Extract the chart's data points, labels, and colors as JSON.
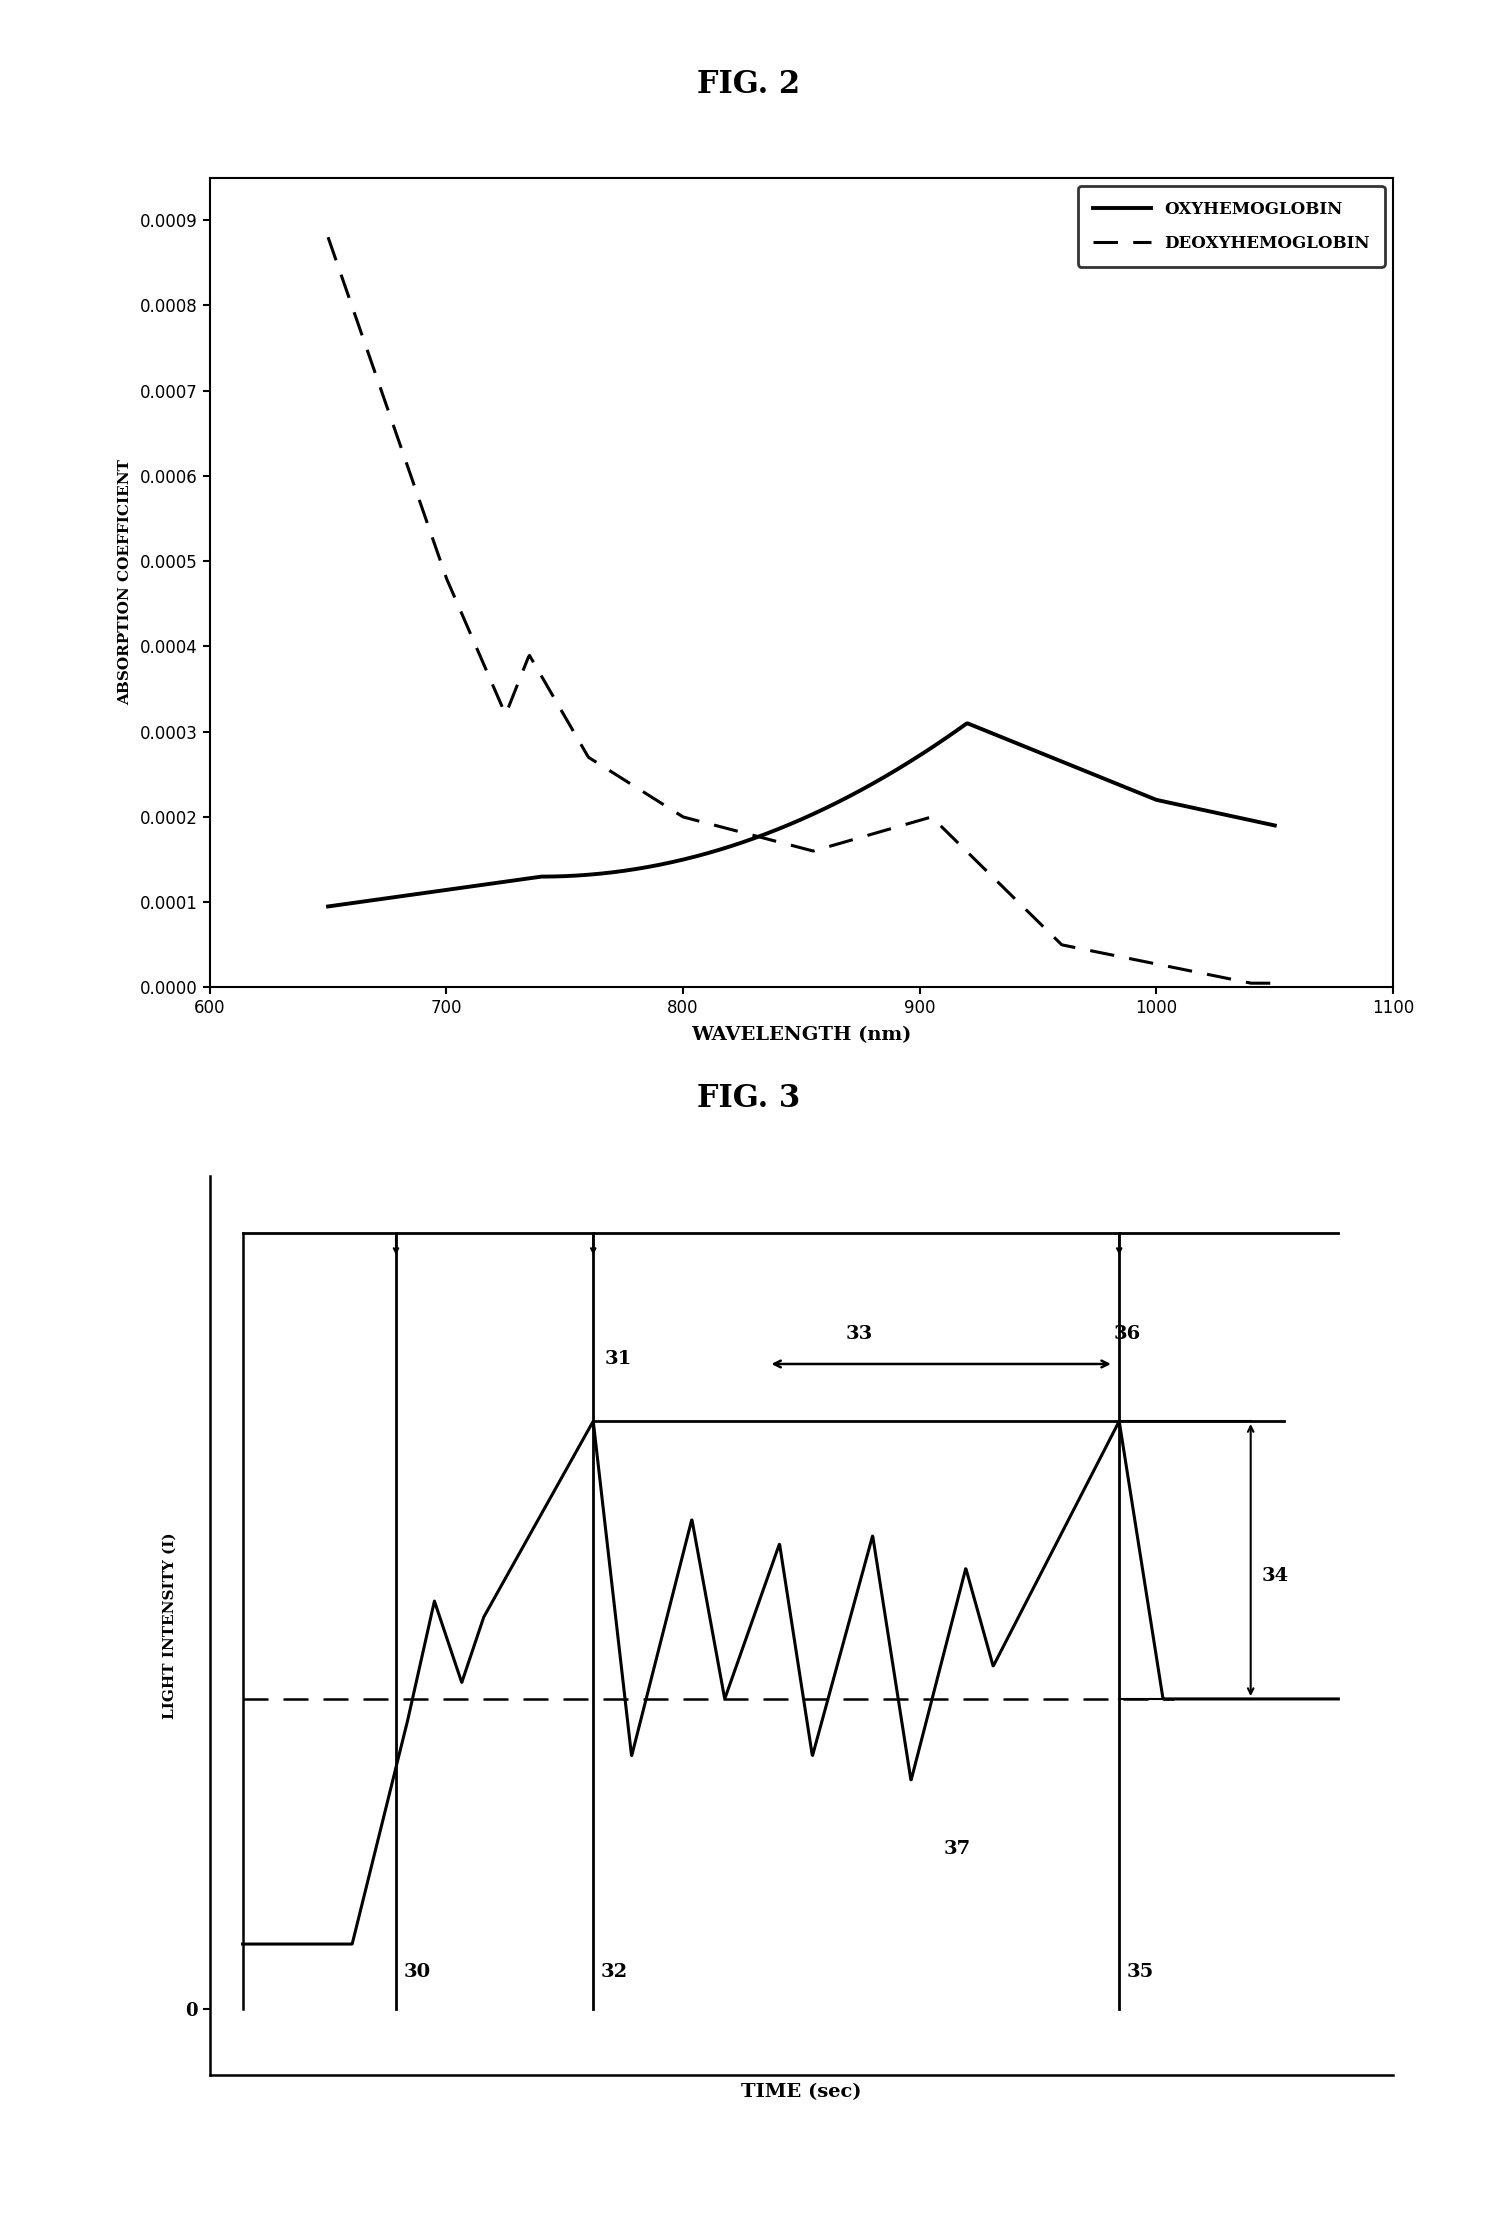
{
  "fig2_title": "FIG. 2",
  "fig3_title": "FIG. 3",
  "fig2_xlabel": "WAVELENGTH (nm)",
  "fig2_ylabel": "ABSORPTION COEFFICIENT",
  "fig2_xlim": [
    600,
    1100
  ],
  "fig2_ylim": [
    0.0,
    0.00095
  ],
  "fig2_yticks": [
    0.0,
    0.0001,
    0.0002,
    0.0003,
    0.0004,
    0.0005,
    0.0006,
    0.0007,
    0.0008,
    0.0009
  ],
  "fig2_xticks": [
    600,
    700,
    800,
    900,
    1000,
    1100
  ],
  "legend_oxy": "OXYHEMOGLOBIN",
  "legend_deoxy": "DEOXYHEMOGLOBIN",
  "fig3_xlabel": "TIME (sec)",
  "fig3_ylabel": "LIGHT INTENSITY (I)",
  "background_color": "#ffffff",
  "line_color": "#000000",
  "label_30": "30",
  "label_31": "31",
  "label_32": "32",
  "label_33": "33",
  "label_34": "34",
  "label_35": "35",
  "label_36": "36",
  "label_37": "37"
}
